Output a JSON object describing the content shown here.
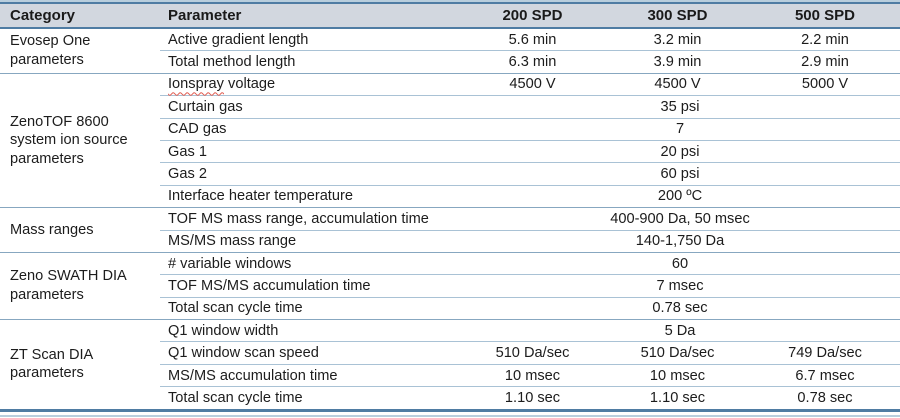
{
  "table": {
    "headers": {
      "category": "Category",
      "parameter": "Parameter",
      "spd200": "200 SPD",
      "spd300": "300 SPD",
      "spd500": "500 SPD"
    },
    "sections": [
      {
        "category": "Evosep One parameters",
        "rows": [
          {
            "parameter": "Active gradient length",
            "v1": "5.6 min",
            "v2": "3.2 min",
            "v3": "2.2 min"
          },
          {
            "parameter": "Total method length",
            "v1": "6.3 min",
            "v2": "3.9 min",
            "v3": "2.9 min"
          }
        ]
      },
      {
        "category": "ZenoTOF 8600 system ion source parameters",
        "rows": [
          {
            "parameter_flagged": "Ionspray",
            "parameter_rest": " voltage",
            "v1": "4500 V",
            "v2": "4500 V",
            "v3": "5000 V"
          },
          {
            "parameter": "Curtain gas",
            "span": "35 psi"
          },
          {
            "parameter": "CAD gas",
            "span": "7"
          },
          {
            "parameter": "Gas 1",
            "span": "20 psi"
          },
          {
            "parameter": "Gas 2",
            "span": "60 psi"
          },
          {
            "parameter": "Interface heater temperature",
            "span": "200 ºC"
          }
        ]
      },
      {
        "category": "Mass ranges",
        "rows": [
          {
            "parameter": "TOF MS mass range, accumulation time",
            "span": "400-900 Da, 50 msec"
          },
          {
            "parameter": "MS/MS mass range",
            "span": "140-1,750 Da"
          }
        ]
      },
      {
        "category": "Zeno SWATH DIA parameters",
        "rows": [
          {
            "parameter": "# variable windows",
            "span": "60"
          },
          {
            "parameter": "TOF MS/MS accumulation time",
            "span": "7 msec"
          },
          {
            "parameter": "Total scan cycle time",
            "span": "0.78 sec"
          }
        ]
      },
      {
        "category": "ZT Scan DIA parameters",
        "rows": [
          {
            "parameter": "Q1 window width",
            "span": "5 Da"
          },
          {
            "parameter": "Q1 window scan speed",
            "v1": "510 Da/sec",
            "v2": "510 Da/sec",
            "v3": "749 Da/sec"
          },
          {
            "parameter": "MS/MS accumulation time",
            "v1": "10 msec",
            "v2": "10 msec",
            "v3": "6.7 msec"
          },
          {
            "parameter": "Total scan cycle time",
            "v1": "1.10 sec",
            "v2": "1.10 sec",
            "v3": "0.78 sec"
          }
        ]
      }
    ]
  },
  "colors": {
    "frame_border": "#4f7ca3",
    "header_bg": "#d2d7df",
    "row_divider": "#a9c2d5",
    "section_divider": "#87a7c0",
    "outer_accent": "#b9cedd",
    "text": "#1c1c1c",
    "spellcheck_underline": "#e05a4e"
  }
}
